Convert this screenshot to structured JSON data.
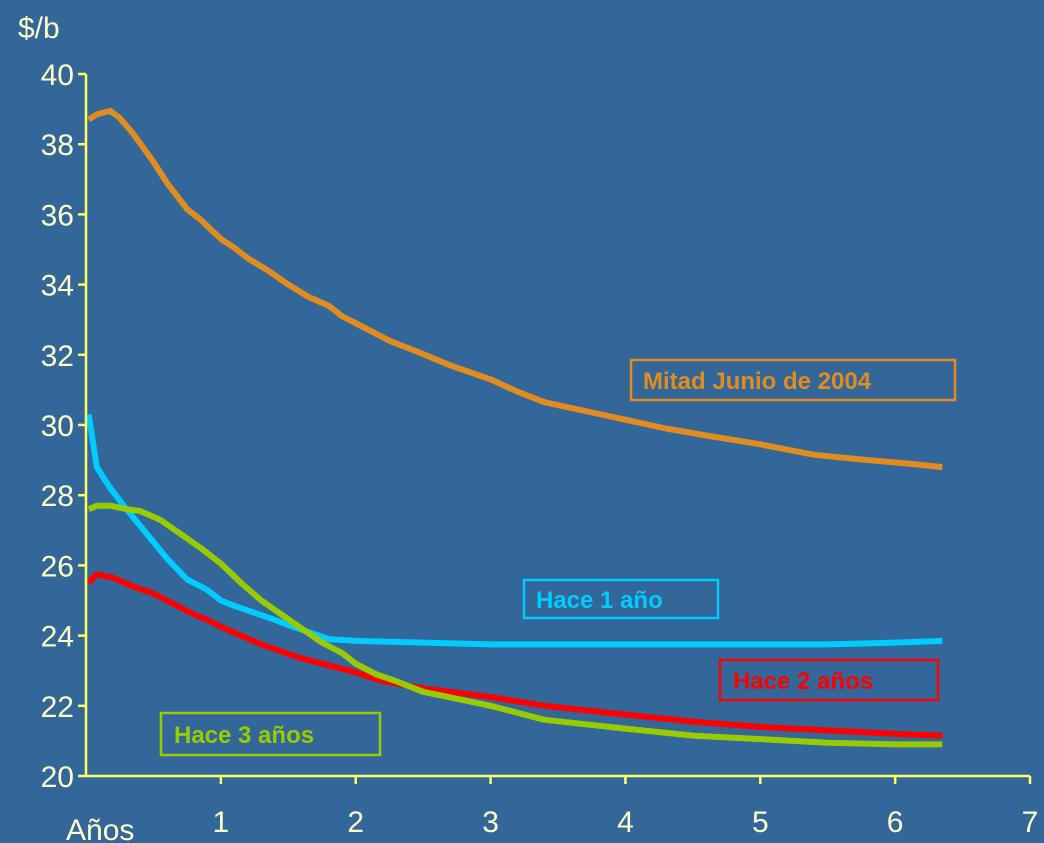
{
  "chart_data": {
    "type": "line",
    "ylabel": "$/b",
    "xlabel": "Años",
    "xlim": [
      0,
      7
    ],
    "ylim": [
      20,
      40
    ],
    "xticks": [
      "1",
      "2",
      "3",
      "4",
      "5",
      "6",
      "7"
    ],
    "yticks": [
      "20",
      "22",
      "24",
      "26",
      "28",
      "30",
      "32",
      "34",
      "36",
      "38",
      "40"
    ],
    "grid": false,
    "legend": "inline-boxes",
    "colors": {
      "background": "#336699",
      "axis": "#ffff66",
      "axis_text": "#ffffcc"
    },
    "series": [
      {
        "name": "Mitad Junio de 2004",
        "color": "#e08c1e",
        "x": [
          0.02,
          0.08,
          0.18,
          0.25,
          0.35,
          0.5,
          0.6,
          0.75,
          0.85,
          1.0,
          1.1,
          1.2,
          1.35,
          1.5,
          1.65,
          1.8,
          1.9,
          2.0,
          2.1,
          2.25,
          2.45,
          2.7,
          3.0,
          3.2,
          3.4,
          3.7,
          4.0,
          4.3,
          4.6,
          5.0,
          5.4,
          5.8,
          6.1,
          6.35
        ],
        "y": [
          38.7,
          38.85,
          38.95,
          38.75,
          38.3,
          37.5,
          36.9,
          36.15,
          35.85,
          35.3,
          35.05,
          34.75,
          34.4,
          34.0,
          33.65,
          33.4,
          33.1,
          32.9,
          32.7,
          32.4,
          32.1,
          31.7,
          31.3,
          30.95,
          30.65,
          30.4,
          30.15,
          29.9,
          29.7,
          29.45,
          29.15,
          29.0,
          28.9,
          28.8
        ]
      },
      {
        "name": "Hace 1 año",
        "color": "#00ccff",
        "x": [
          0.02,
          0.08,
          0.18,
          0.3,
          0.45,
          0.6,
          0.75,
          0.9,
          1.0,
          1.1,
          1.25,
          1.4,
          1.5,
          1.65,
          1.8,
          2.0,
          2.5,
          3.0,
          3.5,
          4.0,
          4.5,
          5.0,
          5.5,
          6.0,
          6.35
        ],
        "y": [
          30.3,
          28.8,
          28.2,
          27.6,
          26.9,
          26.2,
          25.6,
          25.3,
          25.0,
          24.85,
          24.65,
          24.45,
          24.3,
          24.1,
          23.9,
          23.85,
          23.8,
          23.75,
          23.75,
          23.75,
          23.75,
          23.75,
          23.75,
          23.8,
          23.85
        ]
      },
      {
        "name": "Hace 2 años",
        "color": "#ff0000",
        "x": [
          0.02,
          0.08,
          0.2,
          0.35,
          0.5,
          0.65,
          0.8,
          0.9,
          1.0,
          1.15,
          1.3,
          1.45,
          1.6,
          1.75,
          1.9,
          2.0,
          2.2,
          2.5,
          3.0,
          3.4,
          4.0,
          4.5,
          5.0,
          5.5,
          6.0,
          6.35
        ],
        "y": [
          25.5,
          25.75,
          25.65,
          25.4,
          25.2,
          24.9,
          24.6,
          24.45,
          24.25,
          24.0,
          23.75,
          23.55,
          23.35,
          23.2,
          23.05,
          22.95,
          22.7,
          22.5,
          22.25,
          22.0,
          21.75,
          21.55,
          21.4,
          21.3,
          21.2,
          21.15
        ]
      },
      {
        "name": "Hace 3 años",
        "color": "#99cc00",
        "x": [
          0.02,
          0.08,
          0.18,
          0.3,
          0.4,
          0.55,
          0.7,
          0.85,
          1.0,
          1.15,
          1.3,
          1.45,
          1.6,
          1.75,
          1.9,
          2.0,
          2.15,
          2.3,
          2.5,
          3.0,
          3.4,
          4.0,
          4.5,
          5.0,
          5.5,
          6.0,
          6.35
        ],
        "y": [
          27.6,
          27.7,
          27.7,
          27.6,
          27.55,
          27.3,
          26.9,
          26.5,
          26.05,
          25.5,
          25.0,
          24.6,
          24.2,
          23.8,
          23.5,
          23.2,
          22.9,
          22.7,
          22.4,
          22.0,
          21.6,
          21.35,
          21.15,
          21.05,
          20.95,
          20.9,
          20.9
        ]
      }
    ]
  }
}
